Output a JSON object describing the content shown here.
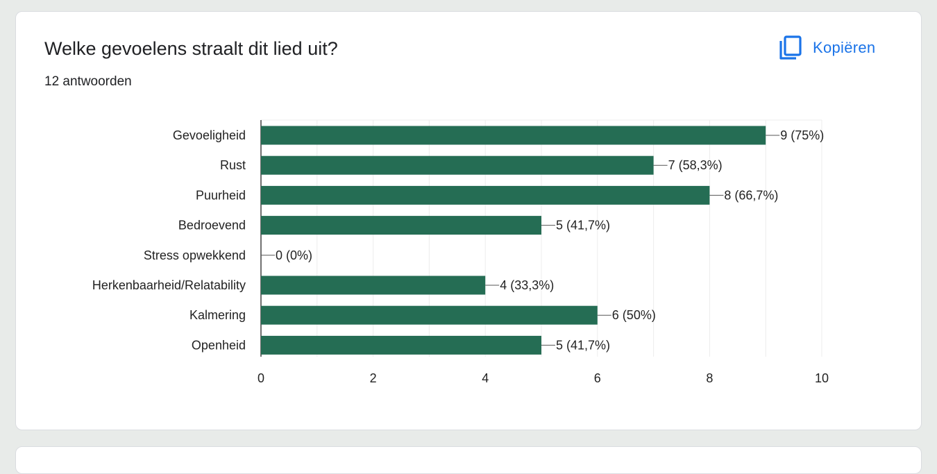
{
  "question": {
    "title": "Welke gevoelens straalt dit lied uit?",
    "subtitle": "12 antwoorden"
  },
  "copy_button": {
    "label": "Kopiëren",
    "icon": "copy-icon"
  },
  "colors": {
    "bar": "#256d54",
    "accent": "#1a73e8"
  },
  "chart_data": {
    "type": "bar",
    "orientation": "horizontal",
    "title": "",
    "xlabel": "",
    "ylabel": "",
    "categories": [
      "Gevoeligheid",
      "Rust",
      "Puurheid",
      "Bedroevend",
      "Stress opwekkend",
      "Herkenbaarheid/Relatability",
      "Kalmering",
      "Openheid"
    ],
    "values": [
      9,
      7,
      8,
      5,
      0,
      4,
      6,
      5
    ],
    "data_labels": [
      "9 (75%)",
      "7 (58,3%)",
      "8 (66,7%)",
      "5 (41,7%)",
      "0 (0%)",
      "4 (33,3%)",
      "6 (50%)",
      "5 (41,7%)"
    ],
    "xlim": [
      0,
      10
    ],
    "xticks": [
      0,
      2,
      4,
      6,
      8,
      10
    ],
    "grid": true,
    "legend": "none"
  }
}
